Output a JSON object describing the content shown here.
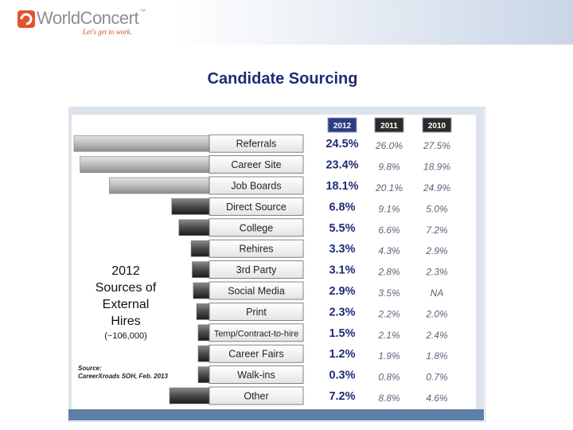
{
  "header": {
    "logo_text": "WorldConcert",
    "logo_tm": "™",
    "tagline": "Let's get to work."
  },
  "slide": {
    "title": "Candidate Sourcing"
  },
  "chart_data": {
    "type": "table",
    "columns": [
      "2012",
      "2011",
      "2010"
    ],
    "categories": [
      "Referrals",
      "Career Site",
      "Job Boards",
      "Direct Source",
      "College",
      "Rehires",
      "3rd Party",
      "Social Media",
      "Print",
      "Temp/Contract-to-hire",
      "Career Fairs",
      "Walk-ins",
      "Other"
    ],
    "series": [
      {
        "name": "2012",
        "values": [
          "24.5%",
          "23.4%",
          "18.1%",
          "6.8%",
          "5.5%",
          "3.3%",
          "3.1%",
          "2.9%",
          "2.3%",
          "1.5%",
          "1.2%",
          "0.3%",
          "7.2%"
        ]
      },
      {
        "name": "2011",
        "values": [
          "26.0%",
          "9.8%",
          "20.1%",
          "9.1%",
          "6.6%",
          "4.3%",
          "2.8%",
          "3.5%",
          "2.2%",
          "2.1%",
          "1.9%",
          "0.8%",
          "8.8%"
        ]
      },
      {
        "name": "2010",
        "values": [
          "27.5%",
          "18.9%",
          "24.9%",
          "5.0%",
          "7.2%",
          "2.9%",
          "2.3%",
          "NA",
          "2.0%",
          "2.4%",
          "1.8%",
          "0.7%",
          "4.6%"
        ]
      }
    ],
    "bar_values_2012": [
      24.5,
      23.4,
      18.1,
      6.8,
      5.5,
      3.3,
      3.1,
      2.9,
      2.3,
      1.5,
      1.2,
      0.3,
      7.2
    ],
    "side_label": [
      "2012",
      "Sources of",
      "External",
      "Hires"
    ],
    "side_note": "(~106,000)",
    "source_label": "Source:",
    "source_text": "CareerXroads SOH, Feb. 2013",
    "colors": {
      "2012_value": "#1e2b78",
      "prior_value": "#5a6478",
      "year_2012_bg": "#2a3c86",
      "year_other_bg": "#2b2b2b"
    }
  }
}
